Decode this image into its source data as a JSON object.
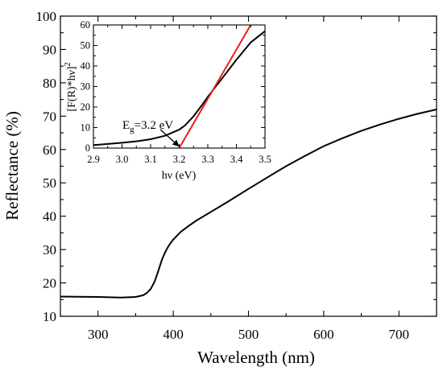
{
  "chart_data": [
    {
      "type": "line",
      "xlabel": "Wavelength (nm)",
      "ylabel": "Reflectance (%)",
      "xlim": [
        250,
        750
      ],
      "ylim": [
        10,
        100
      ],
      "xticks": [
        300,
        400,
        500,
        600,
        700
      ],
      "yticks": [
        10,
        20,
        30,
        40,
        50,
        60,
        70,
        80,
        90,
        100
      ],
      "grid": false,
      "series_color": "#000000",
      "series": [
        {
          "x": [
            250,
            300,
            330,
            350,
            360,
            365,
            370,
            375,
            380,
            385,
            390,
            395,
            400,
            410,
            420,
            430,
            450,
            470,
            500,
            530,
            550,
            575,
            600,
            625,
            650,
            675,
            700,
            725,
            750
          ],
          "y": [
            15.9,
            15.8,
            15.6,
            15.8,
            16.3,
            17.0,
            18.2,
            20.3,
            23.5,
            27.0,
            29.6,
            31.5,
            33.0,
            35.3,
            37.0,
            38.6,
            41.3,
            44.0,
            48.2,
            52.3,
            55.0,
            58.1,
            61.0,
            63.4,
            65.6,
            67.5,
            69.2,
            70.7,
            72.0
          ]
        }
      ]
    },
    {
      "type": "line",
      "xlabel": "hν (eV)",
      "ylabel": "[F(R)*hν]",
      "ylabel_sup": "2",
      "xlim": [
        2.9,
        3.5
      ],
      "ylim": [
        0,
        60
      ],
      "xticks": [
        "2.9",
        "3.0",
        "3.1",
        "3.2",
        "3.3",
        "3.4",
        "3.5"
      ],
      "yticks": [
        0,
        10,
        20,
        30,
        40,
        50,
        60
      ],
      "grid": false,
      "series": [
        {
          "color": "#000000",
          "x": [
            2.9,
            2.95,
            3.0,
            3.05,
            3.1,
            3.15,
            3.2,
            3.22,
            3.25,
            3.28,
            3.3,
            3.35,
            3.4,
            3.45,
            3.5
          ],
          "y": [
            1.5,
            2.0,
            2.6,
            3.3,
            4.3,
            6.0,
            9.0,
            11.0,
            15.5,
            21.0,
            25.0,
            34.0,
            43.0,
            51.5,
            57.0
          ]
        },
        {
          "color": "#e8201a",
          "x": [
            3.2,
            3.45
          ],
          "y": [
            0,
            60
          ]
        }
      ],
      "annotation": {
        "base": "E",
        "sub": "g",
        "text": "=3.2 eV",
        "arrow_to": [
          3.2,
          0
        ]
      }
    }
  ]
}
